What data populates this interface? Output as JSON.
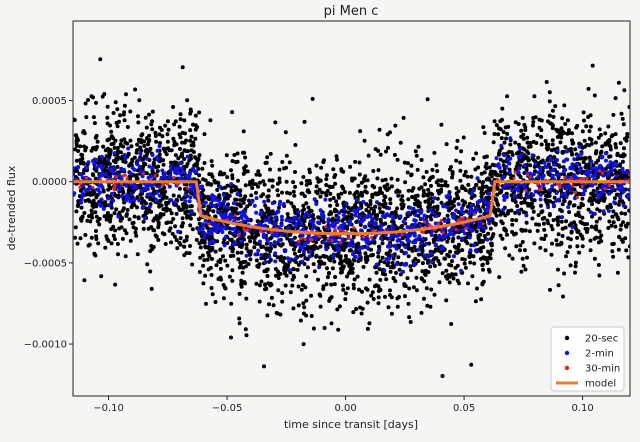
{
  "chart_data": {
    "type": "scatter",
    "title": "pi Men c",
    "xlabel": "time since transit [days]",
    "ylabel": "de-trended flux",
    "xlim": [
      -0.115,
      0.12
    ],
    "ylim": [
      -0.00132,
      0.00099
    ],
    "xticks": [
      -0.1,
      -0.05,
      0.0,
      0.05,
      0.1
    ],
    "xtick_labels": [
      "−0.10",
      "−0.05",
      "0.00",
      "0.05",
      "0.10"
    ],
    "yticks": [
      0.0005,
      0.0,
      -0.0005,
      -0.001
    ],
    "ytick_labels": [
      "0.0005",
      "0.0000",
      "−0.0005",
      "−0.0010"
    ],
    "grid": false,
    "legend_position": "lower-right",
    "transit": {
      "ingress_start": -0.063,
      "full_start": -0.061,
      "full_end": 0.061,
      "egress_end": 0.063,
      "depth_edge": -0.00021,
      "depth_center": -0.00032
    },
    "series": [
      {
        "name": "20-sec",
        "kind": "points",
        "color": "#000000",
        "scatter_sigma": 0.00022,
        "count": 3600,
        "marker_radius": 2.0
      },
      {
        "name": "2-min",
        "kind": "points",
        "color": "#1010e0",
        "scatter_sigma": 9e-05,
        "count": 950,
        "marker_radius": 2.0
      },
      {
        "name": "30-min",
        "kind": "points",
        "color": "#d62728",
        "scatter_sigma": 3e-05,
        "count": 150,
        "marker_radius": 1.6
      },
      {
        "name": "model",
        "kind": "line",
        "color": "#f07a2c",
        "line_width": 3
      }
    ]
  }
}
